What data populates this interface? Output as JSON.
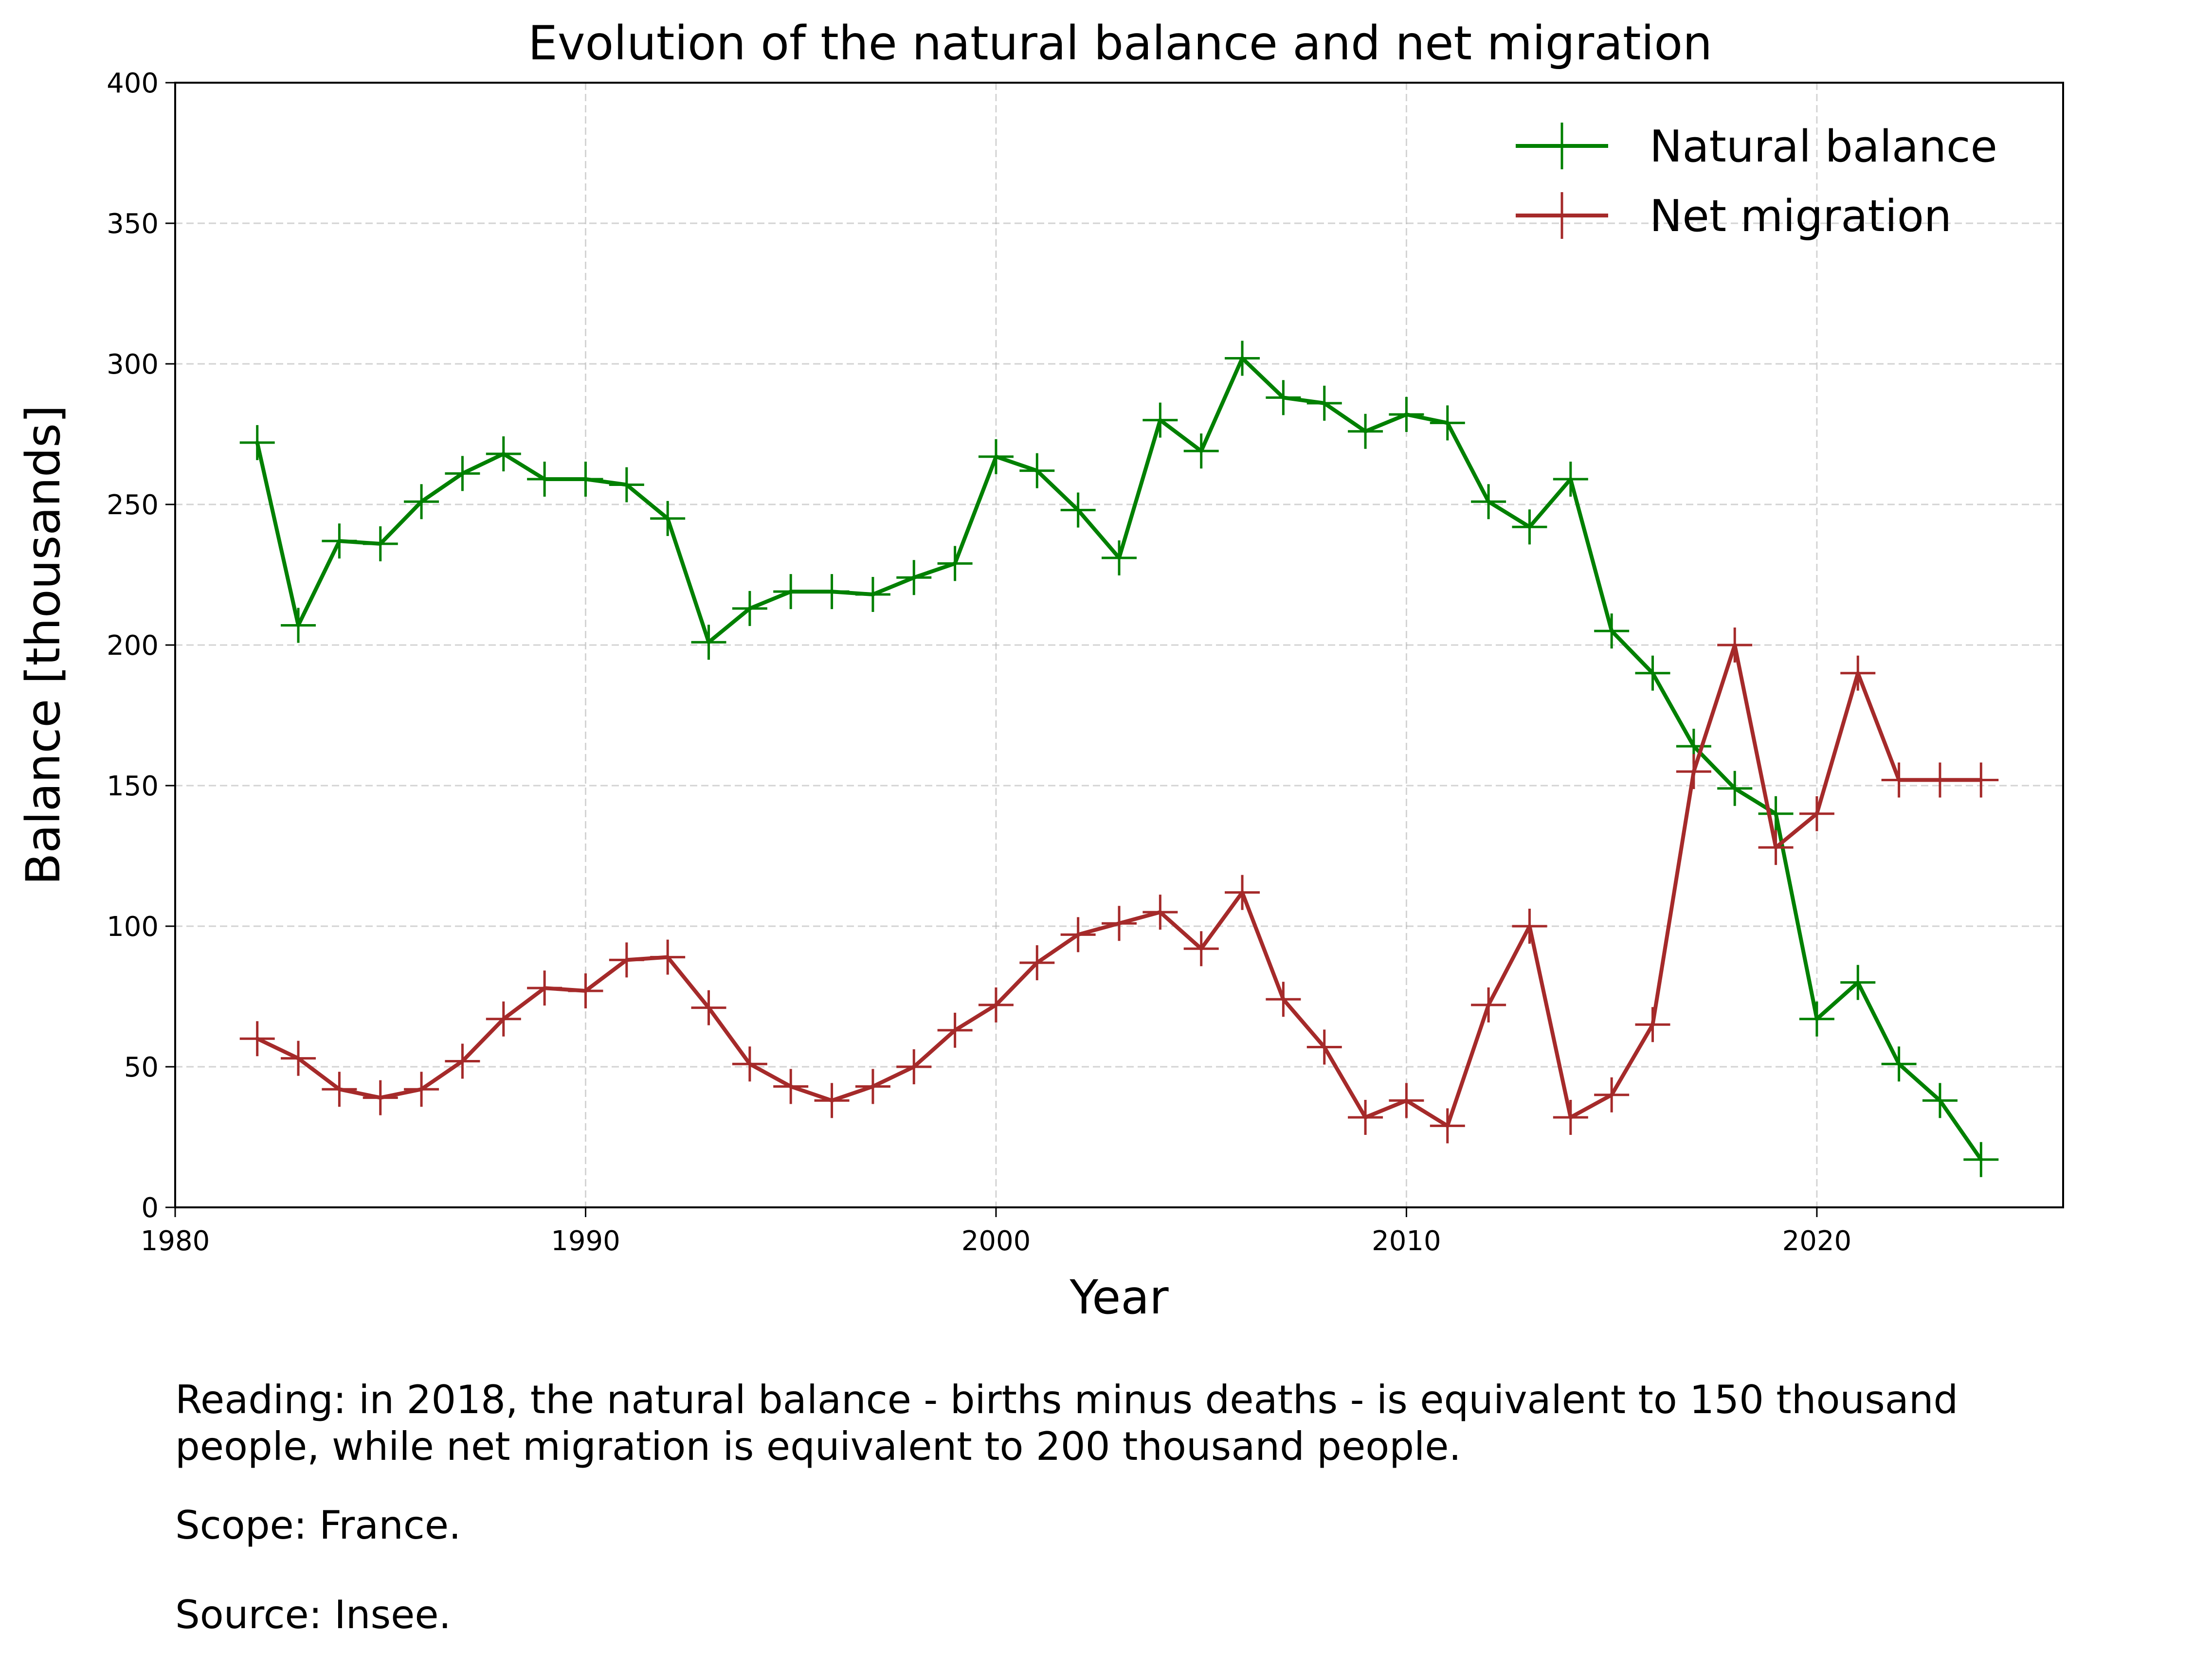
{
  "chart_data": {
    "type": "line",
    "title": "Evolution of the natural balance and net migration",
    "xlabel": "Year",
    "ylabel": "Balance [thousands]",
    "xlim": [
      1980,
      2026
    ],
    "ylim": [
      0,
      400
    ],
    "xticks": [
      1980,
      1990,
      2000,
      2010,
      2020
    ],
    "yticks": [
      0,
      50,
      100,
      150,
      200,
      250,
      300,
      350,
      400
    ],
    "grid": true,
    "legend_position": "top-right",
    "x": [
      1982,
      1983,
      1984,
      1985,
      1986,
      1987,
      1988,
      1989,
      1990,
      1991,
      1992,
      1993,
      1994,
      1995,
      1996,
      1997,
      1998,
      1999,
      2000,
      2001,
      2002,
      2003,
      2004,
      2005,
      2006,
      2007,
      2008,
      2009,
      2010,
      2011,
      2012,
      2013,
      2014,
      2015,
      2016,
      2017,
      2018,
      2019,
      2020,
      2021,
      2022,
      2023,
      2024
    ],
    "series": [
      {
        "name": "Natural balance",
        "color": "#008000",
        "marker": "plus",
        "values": [
          272,
          207,
          237,
          236,
          251,
          261,
          268,
          259,
          259,
          257,
          245,
          201,
          213,
          219,
          219,
          218,
          224,
          229,
          267,
          262,
          248,
          231,
          280,
          269,
          302,
          288,
          286,
          276,
          282,
          279,
          251,
          242,
          259,
          205,
          190,
          164,
          149,
          140,
          67,
          80,
          51,
          38,
          17
        ]
      },
      {
        "name": "Net migration",
        "color": "#a52a2a",
        "marker": "plus",
        "values": [
          60,
          53,
          42,
          39,
          42,
          52,
          67,
          78,
          77,
          88,
          89,
          71,
          51,
          43,
          38,
          43,
          50,
          63,
          72,
          87,
          97,
          101,
          105,
          92,
          112,
          74,
          57,
          32,
          38,
          29,
          72,
          100,
          32,
          40,
          65,
          155,
          200,
          128,
          140,
          190,
          152,
          152,
          152
        ]
      }
    ]
  },
  "notes": {
    "reading_line1": "Reading: in 2018, the natural balance - births minus deaths - is equivalent to 150 thousand",
    "reading_line2": "people, while net migration is equivalent to 200 thousand people.",
    "scope": "Scope: France.",
    "source": "Source: Insee."
  }
}
